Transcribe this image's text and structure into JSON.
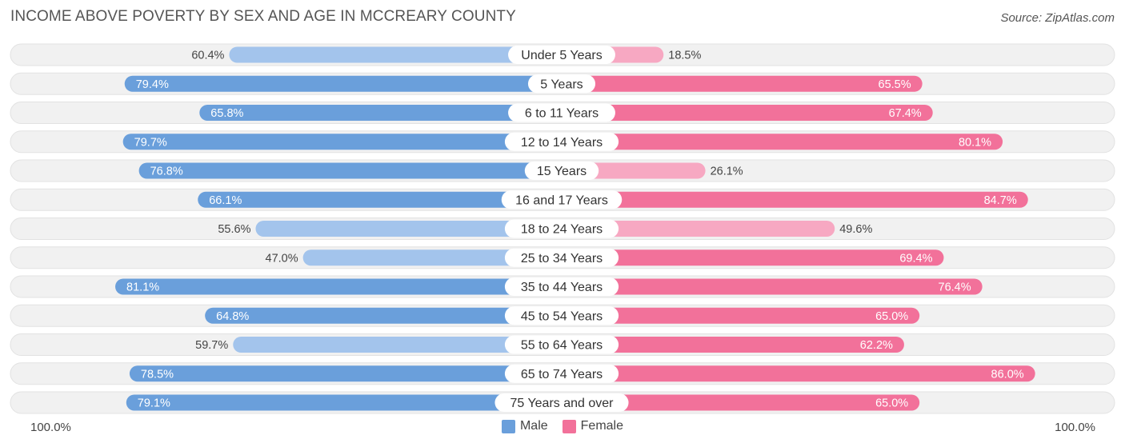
{
  "header": {
    "title": "INCOME ABOVE POVERTY BY SEX AND AGE IN MCCREARY COUNTY",
    "source": "Source: ZipAtlas.com"
  },
  "axis": {
    "left_label": "100.0%",
    "right_label": "100.0%"
  },
  "legend": {
    "male": "Male",
    "female": "Female"
  },
  "colors": {
    "male_strong": "#6a9fdb",
    "male_light": "#a3c4ec",
    "female_strong": "#f2719a",
    "female_light": "#f7a8c2",
    "row_bg": "#f1f1f1"
  },
  "chart_data": {
    "type": "bar",
    "orientation": "horizontal-diverging",
    "title": "INCOME ABOVE POVERTY BY SEX AND AGE IN MCCREARY COUNTY",
    "categories": [
      "Under 5 Years",
      "5 Years",
      "6 to 11 Years",
      "12 to 14 Years",
      "15 Years",
      "16 and 17 Years",
      "18 to 24 Years",
      "25 to 34 Years",
      "35 to 44 Years",
      "45 to 54 Years",
      "55 to 64 Years",
      "65 to 74 Years",
      "75 Years and over"
    ],
    "series": [
      {
        "name": "Male",
        "values": [
          60.4,
          79.4,
          65.8,
          79.7,
          76.8,
          66.1,
          55.6,
          47.0,
          81.1,
          64.8,
          59.7,
          78.5,
          79.1
        ],
        "labels": [
          "60.4%",
          "79.4%",
          "65.8%",
          "79.7%",
          "76.8%",
          "66.1%",
          "55.6%",
          "47.0%",
          "81.1%",
          "64.8%",
          "59.7%",
          "78.5%",
          "79.1%"
        ]
      },
      {
        "name": "Female",
        "values": [
          18.5,
          65.5,
          67.4,
          80.1,
          26.1,
          84.7,
          49.6,
          69.4,
          76.4,
          65.0,
          62.2,
          86.0,
          65.0
        ],
        "labels": [
          "18.5%",
          "65.5%",
          "67.4%",
          "80.1%",
          "26.1%",
          "84.7%",
          "49.6%",
          "69.4%",
          "76.4%",
          "65.0%",
          "62.2%",
          "86.0%",
          "65.0%"
        ]
      }
    ],
    "xlim": [
      -100,
      100
    ],
    "xlabel_left": "100.0%",
    "xlabel_right": "100.0%",
    "legend_position": "bottom-center"
  }
}
